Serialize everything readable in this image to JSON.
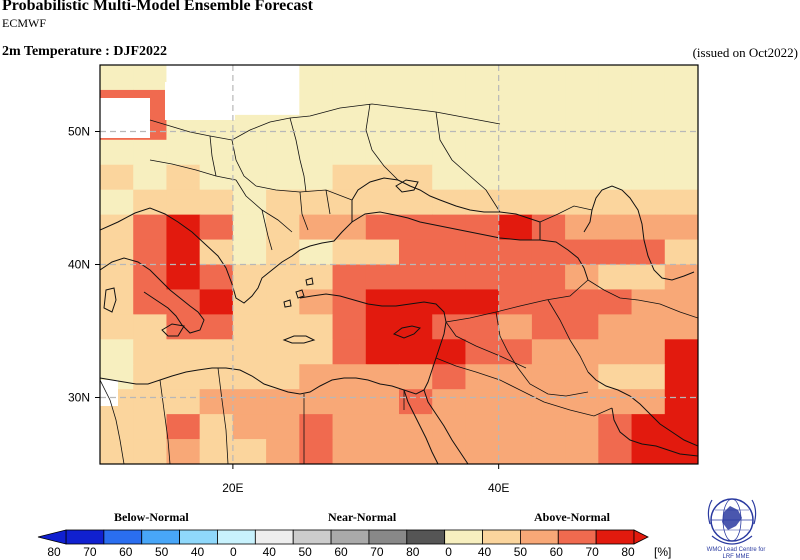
{
  "header": {
    "title": "Probabilistic Multi-Model Ensemble Forecast",
    "model": "ECMWF",
    "subtitle": "2m Temperature : DJF2022",
    "issued": "(issued on Oct2022)"
  },
  "map": {
    "region": {
      "lon_min": 10,
      "lon_max": 55,
      "lat_min": 25,
      "lat_max": 55
    },
    "lat_labels": [
      {
        "value": 50,
        "label": "50N"
      },
      {
        "value": 40,
        "label": "40N"
      },
      {
        "value": 30,
        "label": "30N"
      }
    ],
    "lon_labels": [
      {
        "value": 20,
        "label": "20E"
      },
      {
        "value": 40,
        "label": "40E"
      }
    ],
    "grid_lines": true
  },
  "colors": {
    "below": [
      "#1020d0",
      "#2a6ef0",
      "#48a6f8",
      "#8fd8fb",
      "#c8f2fd"
    ],
    "near": [
      "#eeeeee",
      "#cccccc",
      "#aaaaaa",
      "#888888",
      "#555555"
    ],
    "above": [
      "#f7efbf",
      "#fbd59d",
      "#f8a877",
      "#f06a4f",
      "#e21a0e"
    ],
    "sea": "#ffffff",
    "coast": "#111111"
  },
  "legend": {
    "categories": [
      {
        "name": "Below-Normal"
      },
      {
        "name": "Near-Normal"
      },
      {
        "name": "Above-Normal"
      }
    ],
    "tick_labels": [
      "80",
      "70",
      "60",
      "50",
      "40",
      "0",
      "40",
      "50",
      "60",
      "70",
      "80",
      "0",
      "40",
      "50",
      "60",
      "70",
      "80"
    ],
    "unit": "[%]"
  },
  "logo": {
    "caption_line1": "WMO Lead Centre for",
    "caption_line2": "LRF MME"
  }
}
